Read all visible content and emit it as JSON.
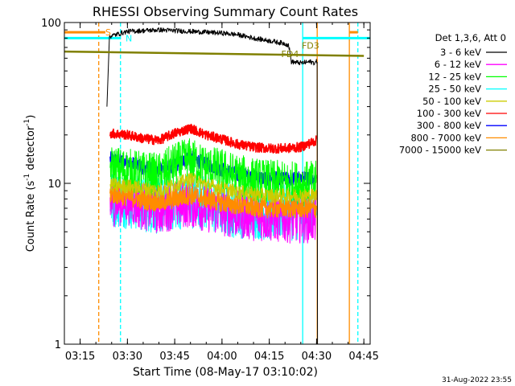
{
  "chart_data": {
    "type": "line",
    "title": "RHESSI Observing Summary Count Rates",
    "xlabel": "Start Time (08-May-17 03:10:02)",
    "ylabel_main": "Count Rate (s",
    "ylabel_sup1": "-1",
    "ylabel_mid": " detector",
    "ylabel_sup2": "-1",
    "ylabel_end": ")",
    "ylabel": "Count Rate (s^-1 detector^-1)",
    "yscale": "log",
    "ylim": [
      1,
      100
    ],
    "xlim_minutes": [
      0,
      97
    ],
    "x_ticks": [
      {
        "label": "03:15",
        "m": 5
      },
      {
        "label": "03:30",
        "m": 20
      },
      {
        "label": "03:45",
        "m": 35
      },
      {
        "label": "04:00",
        "m": 50
      },
      {
        "label": "04:15",
        "m": 65
      },
      {
        "label": "04:30",
        "m": 80
      },
      {
        "label": "04:45",
        "m": 95
      }
    ],
    "y_ticks": [
      {
        "label": "1",
        "v": 1
      },
      {
        "label": "10",
        "v": 10
      },
      {
        "label": "100",
        "v": 100
      }
    ],
    "legend_header": "Det 1,3,6, Att 0",
    "legend_placement": "right",
    "footer_date": "31-Aug-2022 23:55",
    "series": [
      {
        "name": "3 - 6 keV",
        "color": "#000000",
        "x": [
          13.5,
          14.3,
          20,
          25,
          30,
          35,
          40,
          45,
          50,
          55,
          60,
          65,
          70,
          71.2,
          72,
          75,
          78,
          79.5,
          80.3
        ],
        "y": [
          30,
          82,
          88,
          89,
          90,
          89,
          88,
          87,
          86,
          84,
          80,
          77,
          74,
          72,
          57,
          56,
          57,
          56,
          58
        ]
      },
      {
        "name": "6 - 12 keV",
        "color": "#ff00ff",
        "x": [
          14.5,
          20,
          25,
          30,
          35,
          40,
          45,
          50,
          55,
          60,
          65,
          70,
          75,
          80
        ],
        "y": [
          7.5,
          7.8,
          7.2,
          6.8,
          7.3,
          7.5,
          7.0,
          6.6,
          6.4,
          6.2,
          6.1,
          6.0,
          6.0,
          6.0
        ]
      },
      {
        "name": "12 - 25 keV",
        "color": "#00ff00",
        "x": [
          14.5,
          20,
          25,
          30,
          35,
          40,
          45,
          50,
          55,
          60,
          65,
          70,
          75,
          80
        ],
        "y": [
          12.5,
          12.0,
          11.5,
          11.2,
          13.0,
          14.0,
          12.5,
          12.0,
          11.0,
          10.5,
          10.2,
          10.0,
          10.0,
          10.0
        ]
      },
      {
        "name": "25 - 50 keV",
        "color": "#00ffff",
        "x": [
          14.5,
          20,
          25,
          30,
          35,
          40,
          45,
          50,
          55,
          60,
          65,
          70,
          75,
          80
        ],
        "y": [
          8.0,
          7.8,
          7.4,
          7.2,
          7.6,
          7.9,
          7.5,
          7.0,
          6.8,
          6.7,
          6.6,
          6.6,
          6.6,
          6.6
        ]
      },
      {
        "name": "50 - 100 keV",
        "color": "#cccc00",
        "x": [
          14.5,
          20,
          25,
          30,
          35,
          40,
          45,
          50,
          55,
          60,
          65,
          70,
          75,
          80
        ],
        "y": [
          9.8,
          9.6,
          9.3,
          9.0,
          9.8,
          10.6,
          9.8,
          9.3,
          8.8,
          8.6,
          8.4,
          8.4,
          8.4,
          8.4
        ]
      },
      {
        "name": "100 - 300 keV",
        "color": "#ff0000",
        "x": [
          14.5,
          20,
          25,
          30,
          35,
          40,
          45,
          50,
          55,
          60,
          65,
          70,
          75,
          80
        ],
        "y": [
          20.5,
          20.0,
          19.0,
          18.5,
          20.5,
          22.0,
          20.0,
          18.8,
          17.5,
          16.8,
          16.5,
          16.5,
          16.8,
          18.5
        ]
      },
      {
        "name": "300 - 800 keV",
        "color": "#0000ff",
        "x": [
          14.5,
          20,
          25,
          30,
          35,
          40,
          45,
          50,
          55,
          60,
          65,
          70,
          75,
          80
        ],
        "y": [
          14.2,
          13.5,
          12.6,
          12.0,
          13.0,
          14.5,
          13.2,
          12.2,
          11.4,
          11.0,
          10.7,
          10.6,
          10.7,
          10.8
        ]
      },
      {
        "name": "800 - 7000 keV",
        "color": "#ff8c00",
        "x": [
          14.5,
          20,
          25,
          30,
          35,
          40,
          45,
          50,
          55,
          60,
          65,
          70,
          75,
          80
        ],
        "y": [
          8.6,
          8.3,
          7.9,
          7.6,
          8.0,
          8.5,
          8.0,
          7.6,
          7.3,
          7.1,
          7.0,
          7.0,
          7.0,
          7.0
        ]
      },
      {
        "name": "7000 - 15000 keV",
        "color": "#808000",
        "x": [
          0,
          95
        ],
        "y": [
          66,
          62
        ]
      }
    ],
    "annotations": [
      {
        "label": "S",
        "color": "#ff8c00",
        "x_m": 13,
        "y": 87
      },
      {
        "label": "N",
        "color": "#00ffff",
        "x_m": 19.4,
        "y": 80
      },
      {
        "label": "FD3",
        "color": "#808000",
        "x_m": 75.3,
        "y": 72
      },
      {
        "label": "FD4",
        "color": "#808000",
        "x_m": 68.8,
        "y": 64
      }
    ],
    "vertical_markers": [
      {
        "color": "#ff8c00",
        "dashed": true,
        "x_m": 10.9
      },
      {
        "color": "#00ffff",
        "dashed": true,
        "x_m": 17.8
      },
      {
        "color": "#00ffff",
        "dashed": false,
        "x_m": 75.6
      },
      {
        "color": "#ff8c00",
        "dashed": false,
        "x_m": 80.2
      },
      {
        "color": "#ff8c00",
        "dashed": false,
        "x_m": 90.4
      },
      {
        "color": "#00ffff",
        "dashed": true,
        "x_m": 93.1
      }
    ],
    "horizontal_markers": [
      {
        "color": "#ff8c00",
        "x0_m": 0,
        "x1_m": 13.0,
        "y": 87
      },
      {
        "color": "#00ffff",
        "x0_m": 0,
        "x1_m": 17.8,
        "y": 80
      },
      {
        "color": "#00ffff",
        "x0_m": 75.6,
        "x1_m": 93.1,
        "y": 80
      },
      {
        "color": "#00ffff",
        "x0_m": 93.1,
        "x1_m": 97,
        "y": 80
      },
      {
        "color": "#ff8c00",
        "x0_m": 90.4,
        "x1_m": 93.1,
        "y": 87
      }
    ]
  }
}
